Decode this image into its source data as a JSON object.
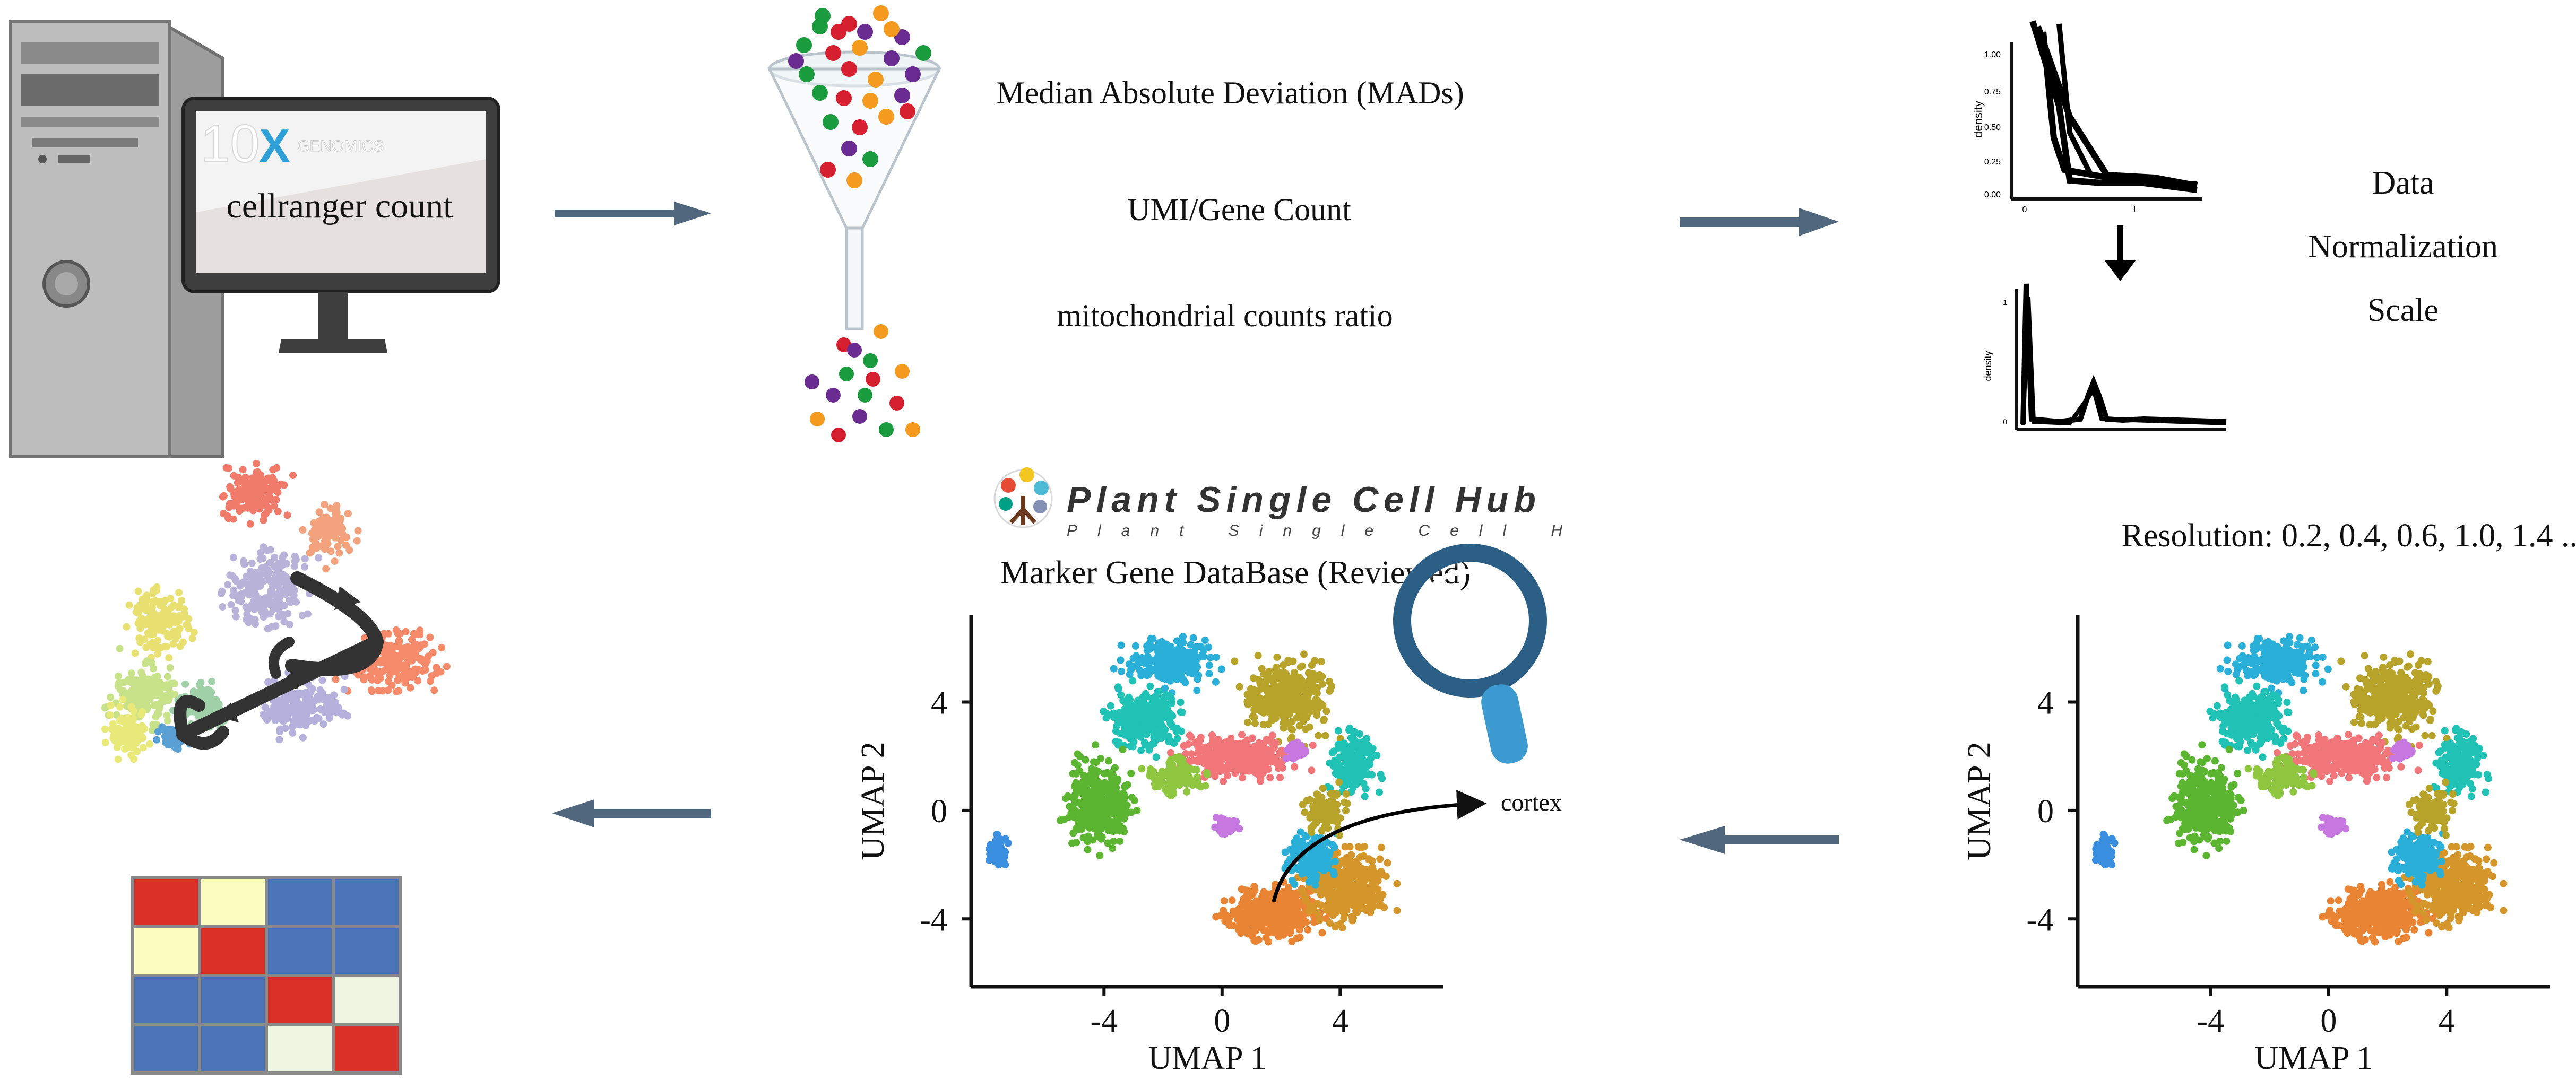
{
  "computer": {
    "brand_num": "10",
    "brand_x": "X",
    "brand_name": "GENOMICS",
    "command": "cellranger count"
  },
  "qc": {
    "items": [
      "Median Absolute Deviation (MADs)",
      "UMI/Gene Count",
      "mitochondrial counts ratio"
    ]
  },
  "normalization": {
    "words": [
      "Data",
      "Normalization",
      "Scale"
    ],
    "top_plot": {
      "ylabel": "density",
      "yticks": [
        "1.00",
        "0.75",
        "0.50",
        "0.25",
        "0.00"
      ],
      "xticks": [
        "0",
        "1"
      ]
    },
    "bottom_plot": {
      "ylabel": "density",
      "yticks": [
        "1",
        "0"
      ]
    }
  },
  "resolution": {
    "label": "Resolution: 0.2, 0.4, 0.6, 1.0, 1.4 ..."
  },
  "hub": {
    "title": "Plant Single Cell Hub",
    "subtitle": "Plant Single Cell H",
    "db": "Marker Gene DataBase (Reviewed)",
    "annotation": "cortex"
  },
  "umap": {
    "xlabel": "UMAP 1",
    "ylabel": "UMAP 2",
    "xticks": [
      "-4",
      "0",
      "4"
    ],
    "yticks": [
      "4",
      "0",
      "-4"
    ]
  },
  "colors": {
    "arrow": "#3d5670",
    "cluster_orange": "#e88434",
    "cluster_gold": "#d4962a",
    "cluster_salmon": "#f0767a",
    "cluster_olive": "#b7a22a",
    "cluster_green": "#5bb531",
    "cluster_teal": "#1fc2b4",
    "cluster_cyan": "#2ab0d8",
    "cluster_lime": "#8fc640",
    "cluster_violet": "#c678e0",
    "cluster_blue": "#3a8ee0",
    "heat_red": "#d93027",
    "heat_blue": "#4a73b8",
    "heat_cream": "#fdfcc0",
    "heat_pale": "#eef6e2"
  }
}
